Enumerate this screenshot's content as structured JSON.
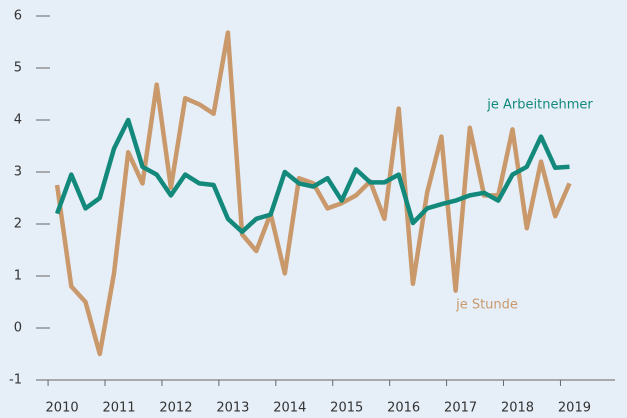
{
  "chart_data": {
    "type": "line",
    "x": [
      2010,
      2010.25,
      2010.5,
      2010.75,
      2011,
      2011.25,
      2011.5,
      2011.75,
      2012,
      2012.25,
      2012.5,
      2012.75,
      2013,
      2013.25,
      2013.5,
      2013.75,
      2014,
      2014.25,
      2014.5,
      2014.75,
      2015,
      2015.25,
      2015.5,
      2015.75,
      2016,
      2016.25,
      2016.5,
      2016.75,
      2017,
      2017.25,
      2017.5,
      2017.75,
      2018,
      2018.25,
      2018.5,
      2018.75,
      2019
    ],
    "series": [
      {
        "name": "je Arbeitnehmer",
        "color": "#13897c",
        "values": [
          2.2,
          2.95,
          2.3,
          2.5,
          3.45,
          4.0,
          3.1,
          2.95,
          2.55,
          2.95,
          2.78,
          2.75,
          2.1,
          1.85,
          2.1,
          2.18,
          3.0,
          2.78,
          2.72,
          2.88,
          2.45,
          3.05,
          2.8,
          2.8,
          2.95,
          2.02,
          2.3,
          2.38,
          2.45,
          2.55,
          2.6,
          2.45,
          2.95,
          3.1,
          3.68,
          3.08,
          3.1
        ]
      },
      {
        "name": "je Stunde",
        "color": "#c9996b",
        "values": [
          2.75,
          0.8,
          0.5,
          -0.5,
          1.05,
          3.38,
          2.78,
          4.68,
          2.7,
          4.42,
          4.3,
          4.12,
          5.68,
          1.8,
          1.48,
          2.2,
          1.05,
          2.88,
          2.78,
          2.3,
          2.4,
          2.55,
          2.82,
          2.1,
          4.22,
          0.85,
          2.6,
          3.68,
          0.72,
          3.85,
          2.55,
          2.55,
          3.82,
          1.92,
          3.2,
          2.15,
          2.78
        ]
      }
    ],
    "xlim": [
      2009.7,
      2019.8
    ],
    "xticks": [
      2010,
      2011,
      2012,
      2013,
      2014,
      2015,
      2016,
      2017,
      2018,
      2019
    ],
    "ylim": [
      -1,
      6
    ],
    "yticks": [
      -1,
      0,
      1,
      2,
      3,
      4,
      5,
      6
    ]
  }
}
